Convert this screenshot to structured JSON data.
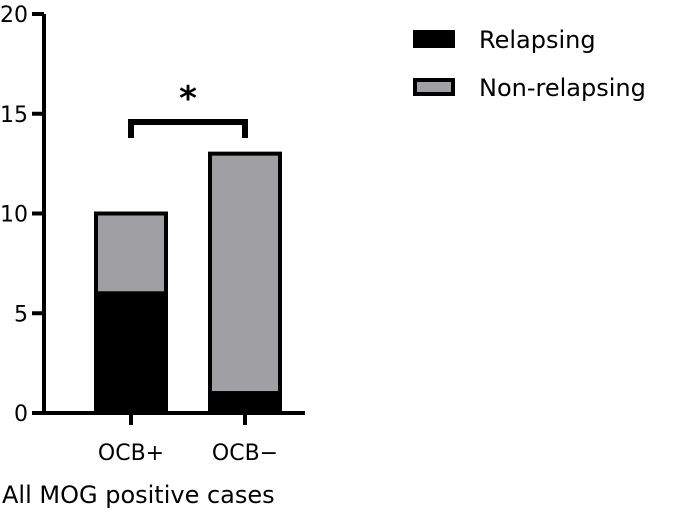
{
  "chart_data": {
    "type": "bar",
    "stacked": true,
    "categories": [
      "OCB+",
      "OCB−"
    ],
    "series": [
      {
        "name": "Relapsing",
        "values": [
          6,
          1
        ],
        "color": "#000000"
      },
      {
        "name": "Non-relapsing",
        "values": [
          4,
          12
        ],
        "color": "#a0a0a4"
      }
    ],
    "xlabel": "All MOG positive cases",
    "ylabel": "",
    "ylim": [
      0,
      20
    ],
    "yticks": [
      0,
      5,
      10,
      15,
      20
    ],
    "grid": false,
    "legend_position": "top-right",
    "annotations": [
      {
        "type": "significance-bracket",
        "from": "OCB+",
        "to": "OCB−",
        "label": "*"
      }
    ]
  }
}
